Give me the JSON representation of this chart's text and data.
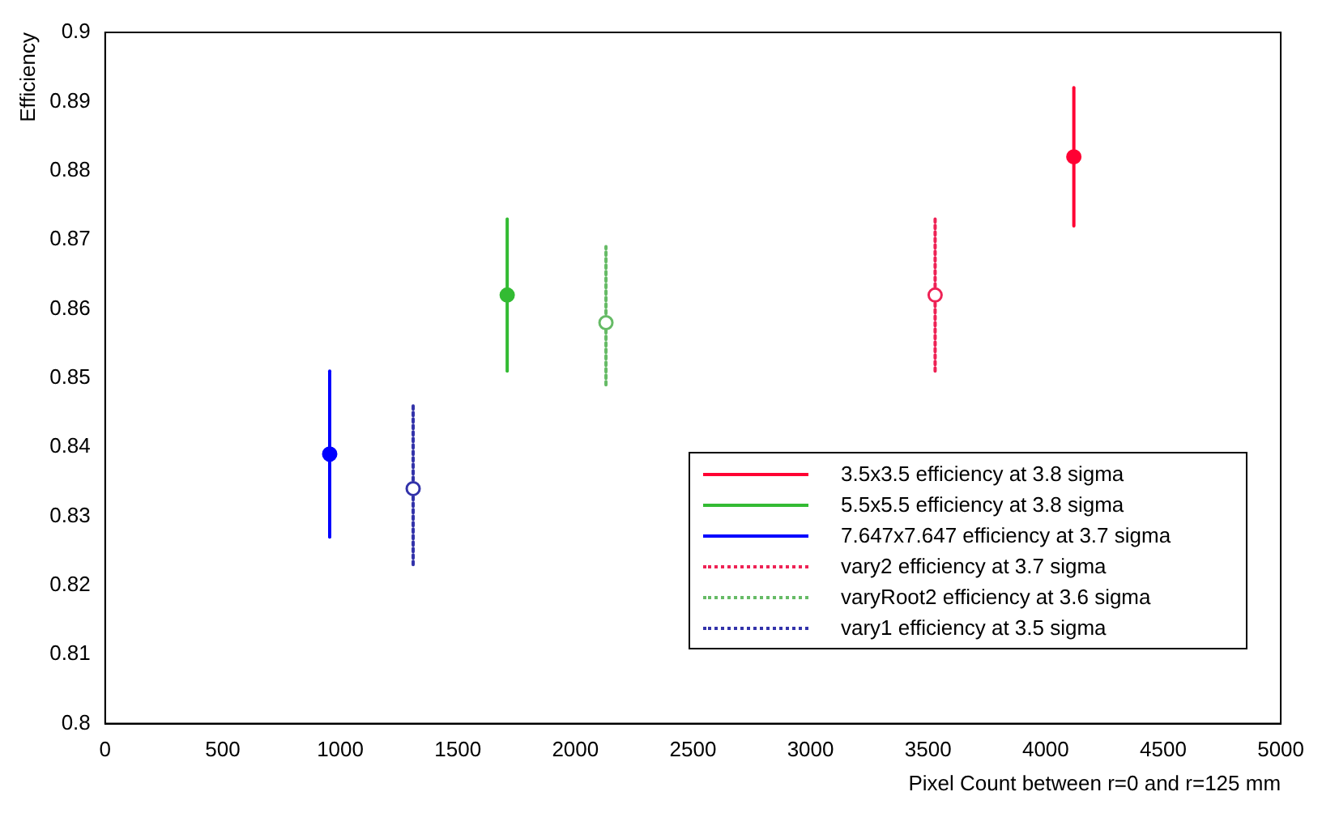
{
  "chart_data": {
    "type": "scatter",
    "xlabel": "Pixel Count between r=0 and r=125 mm",
    "ylabel": "Efficiency",
    "xlim": [
      0,
      5000
    ],
    "xticks": [
      0,
      500,
      1000,
      1500,
      2000,
      2500,
      3000,
      3500,
      4000,
      4500,
      5000
    ],
    "ylim": [
      0.8,
      0.9
    ],
    "yticks": [
      0.8,
      0.81,
      0.82,
      0.83,
      0.84,
      0.85,
      0.86,
      0.87,
      0.88,
      0.89,
      0.9
    ],
    "grid": false,
    "legend": "right",
    "marker": "circle",
    "series": [
      {
        "name": "3.5x3.5 efficiency at 3.8 sigma",
        "color": "#ff0033",
        "x": [
          4120
        ],
        "values": [
          0.882
        ],
        "errors": [
          [
            0.872,
            0.892
          ]
        ],
        "line_style": "solid"
      },
      {
        "name": "5.5x5.5 efficiency at 3.8 sigma",
        "color": "#33bb33",
        "x": [
          1710
        ],
        "values": [
          0.862
        ],
        "errors": [
          [
            0.851,
            0.873
          ]
        ],
        "line_style": "solid"
      },
      {
        "name": "7.647x7.647 efficiency at 3.7 sigma",
        "color": "#0000ff",
        "x": [
          955
        ],
        "values": [
          0.839
        ],
        "errors": [
          [
            0.827,
            0.851
          ]
        ],
        "line_style": "solid"
      },
      {
        "name": "vary2 efficiency at 3.7 sigma",
        "color": "#ee2255",
        "x": [
          3530
        ],
        "values": [
          0.862
        ],
        "errors": [
          [
            0.851,
            0.873
          ]
        ],
        "line_style": "dotted"
      },
      {
        "name": "varyRoot2 efficiency at 3.6 sigma",
        "color": "#66bb66",
        "x": [
          2130
        ],
        "values": [
          0.858
        ],
        "errors": [
          [
            0.849,
            0.869
          ]
        ],
        "line_style": "dotted"
      },
      {
        "name": "vary1 efficiency at 3.5 sigma",
        "color": "#3333aa",
        "x": [
          1310
        ],
        "values": [
          0.834
        ],
        "errors": [
          [
            0.823,
            0.846
          ]
        ],
        "line_style": "dotted"
      }
    ]
  }
}
